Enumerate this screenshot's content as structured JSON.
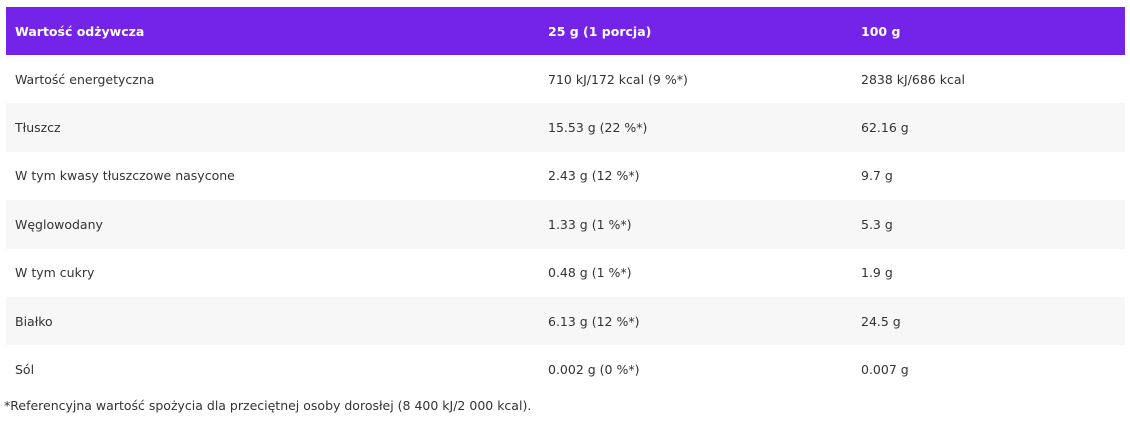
{
  "table": {
    "header": [
      "Wartość odżywcza",
      "25 g (1 porcja)",
      "100 g"
    ],
    "rows": [
      [
        "Wartość energetyczna",
        "710 kJ/172 kcal (9 %*)",
        "2838 kJ/686 kcal"
      ],
      [
        "Tłuszcz",
        "15.53 g (22 %*)",
        "62.16 g"
      ],
      [
        "W tym kwasy tłuszczowe nasycone",
        "2.43 g (12 %*)",
        "9.7 g"
      ],
      [
        "Węglowodany",
        "1.33 g (1 %*)",
        "5.3 g"
      ],
      [
        "W tym cukry",
        "0.48 g (1 %*)",
        "1.9 g"
      ],
      [
        "Białko",
        "6.13 g (12 %*)",
        "24.5 g"
      ],
      [
        "Sól",
        "0.002 g (0 %*)",
        "0.007 g"
      ]
    ]
  },
  "footnote": "*Referencyjna wartość spożycia dla przeciętnej osoby dorosłej (8 400 kJ/2 000 kcal)."
}
